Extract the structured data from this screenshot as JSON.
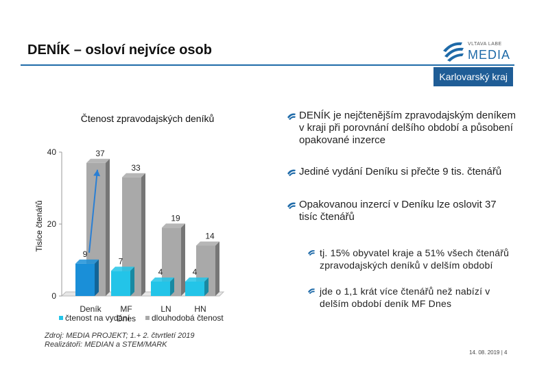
{
  "header": {
    "title": "DENÍK – osloví nejvíce osob",
    "region": "Karlovarský kraj",
    "logo_top": "VLTAVA LABE",
    "logo_bottom": "MEDIA"
  },
  "colors": {
    "accent": "#1e6aa8",
    "badge": "#1f5d96",
    "bar_blue": "#1a8fd8",
    "bar_cyan": "#23c4e8",
    "bar_gray": "#a9a9a9",
    "arrow": "#2a7fd4"
  },
  "chart_data": {
    "type": "bar",
    "title": "Čtenost zpravodajských deníků",
    "ylabel": "Tisíce čtenářů",
    "ylim": [
      0,
      40
    ],
    "yticks": [
      "0",
      "20",
      "40"
    ],
    "categories": [
      {
        "top": "Deník",
        "bottom": ""
      },
      {
        "top": "MF",
        "bottom": "Dnes"
      },
      {
        "top": "LN",
        "bottom": ""
      },
      {
        "top": "HN",
        "bottom": ""
      }
    ],
    "series": [
      {
        "name": "čtenost na vydání",
        "values": [
          9,
          7,
          4,
          4
        ]
      },
      {
        "name": "dlouhodobá čtenost",
        "values": [
          37,
          33,
          19,
          14
        ]
      }
    ]
  },
  "bullets": [
    {
      "level": 1,
      "text": "DENÍK je nejčtenějším zpravodajským deníkem v kraji při porovnání delšího období a působení opakované inzerce"
    },
    {
      "level": 1,
      "text": "Jediné vydání Deníku si přečte 9 tis. čtenářů"
    },
    {
      "level": 1,
      "text": "Opakovanou inzercí v Deníku lze oslovit 37 tisíc čtenářů"
    },
    {
      "level": 2,
      "text": "tj. 15% obyvatel kraje a 51% všech čtenářů zpravodajských deníků v delším období"
    },
    {
      "level": 2,
      "text": "jde o 1,1 krát více čtenářů než nabízí v delším období deník MF Dnes"
    }
  ],
  "source": {
    "line1": "Zdroj: MEDIA PROJEKT; 1.+ 2. čtvrtletí 2019",
    "line2": "Realizátoři: MEDIAN a STEM/MARK"
  },
  "footer": {
    "date": "14. 08. 2019",
    "page": "4"
  }
}
